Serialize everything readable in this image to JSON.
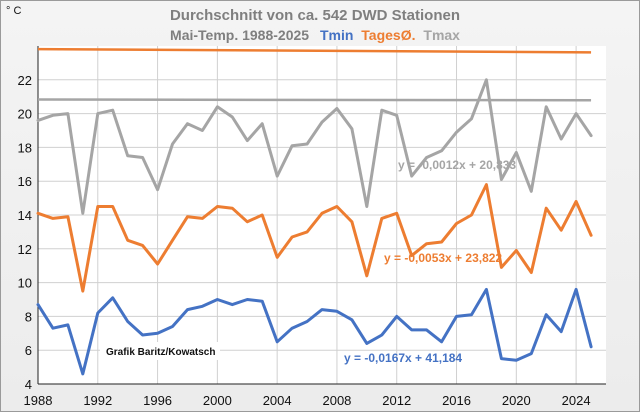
{
  "chart_data": {
    "type": "line",
    "title": "Durchschnitt von ca. 542 DWD Stationen",
    "subtitle": "Mai-Temp. 1988-2025",
    "legend": [
      {
        "label": "Tmin",
        "color": "#4472c4"
      },
      {
        "label": "TagesØ.",
        "color": "#ed7d31"
      },
      {
        "label": "Tmax",
        "color": "#a5a5a5"
      }
    ],
    "ylabel": "° C",
    "xlim": [
      1988,
      2026
    ],
    "ylim": [
      4,
      24
    ],
    "x_ticks": [
      1988,
      1992,
      1996,
      2000,
      2004,
      2008,
      2012,
      2016,
      2020,
      2024
    ],
    "y_ticks": [
      4,
      6,
      8,
      10,
      12,
      14,
      16,
      18,
      20,
      22
    ],
    "grid": true,
    "x": [
      1988,
      1989,
      1990,
      1991,
      1992,
      1993,
      1994,
      1995,
      1996,
      1997,
      1998,
      1999,
      2000,
      2001,
      2002,
      2003,
      2004,
      2005,
      2006,
      2007,
      2008,
      2009,
      2010,
      2011,
      2012,
      2013,
      2014,
      2015,
      2016,
      2017,
      2018,
      2019,
      2020,
      2021,
      2022,
      2023,
      2024,
      2025
    ],
    "series": [
      {
        "name": "Tmax",
        "color": "#a5a5a5",
        "values": [
          19.6,
          19.9,
          20.0,
          14.1,
          20.0,
          20.2,
          17.5,
          17.4,
          15.5,
          18.2,
          19.4,
          19.0,
          20.4,
          19.8,
          18.4,
          19.4,
          16.3,
          18.1,
          18.2,
          19.5,
          20.3,
          19.1,
          14.5,
          20.2,
          19.9,
          16.3,
          17.4,
          17.8,
          18.9,
          19.7,
          22.0,
          16.1,
          17.7,
          15.4,
          20.4,
          18.5,
          20.0,
          18.7
        ]
      },
      {
        "name": "TagesØ.",
        "color": "#ed7d31",
        "values": [
          14.1,
          13.8,
          13.9,
          9.5,
          14.5,
          14.5,
          12.5,
          12.2,
          11.1,
          12.5,
          13.9,
          13.8,
          14.5,
          14.4,
          13.6,
          14.0,
          11.5,
          12.7,
          13.0,
          14.1,
          14.5,
          13.6,
          10.4,
          13.8,
          14.1,
          11.6,
          12.3,
          12.4,
          13.5,
          14.0,
          15.8,
          10.9,
          11.9,
          10.6,
          14.4,
          13.1,
          14.8,
          12.8
        ]
      },
      {
        "name": "Tmin",
        "color": "#4472c4",
        "values": [
          8.7,
          7.3,
          7.5,
          4.6,
          8.2,
          9.1,
          7.7,
          6.9,
          7.0,
          7.4,
          8.4,
          8.6,
          9.0,
          8.7,
          9.0,
          8.9,
          6.5,
          7.3,
          7.7,
          8.4,
          8.3,
          7.8,
          6.4,
          6.9,
          8.0,
          7.2,
          7.2,
          6.5,
          8.0,
          8.1,
          9.6,
          5.5,
          5.4,
          5.8,
          8.1,
          7.1,
          9.6,
          6.2
        ]
      }
    ],
    "trends": [
      {
        "name": "Tmax",
        "color": "#a5a5a5",
        "slope": -0.0012,
        "intercept": 20.833,
        "label": "y = -0,0012x + 20,833"
      },
      {
        "name": "TagesØ.",
        "color": "#ed7d31",
        "slope": -0.0053,
        "intercept": 23.822,
        "label": "y = -0,0053x + 23,822"
      },
      {
        "name": "Tmin",
        "color": "#4472c4",
        "slope": -0.0167,
        "intercept": 41.184,
        "label": "y = -0,0167x + 41,184"
      }
    ],
    "annotation": "Grafik Baritz/Kowatsch"
  }
}
